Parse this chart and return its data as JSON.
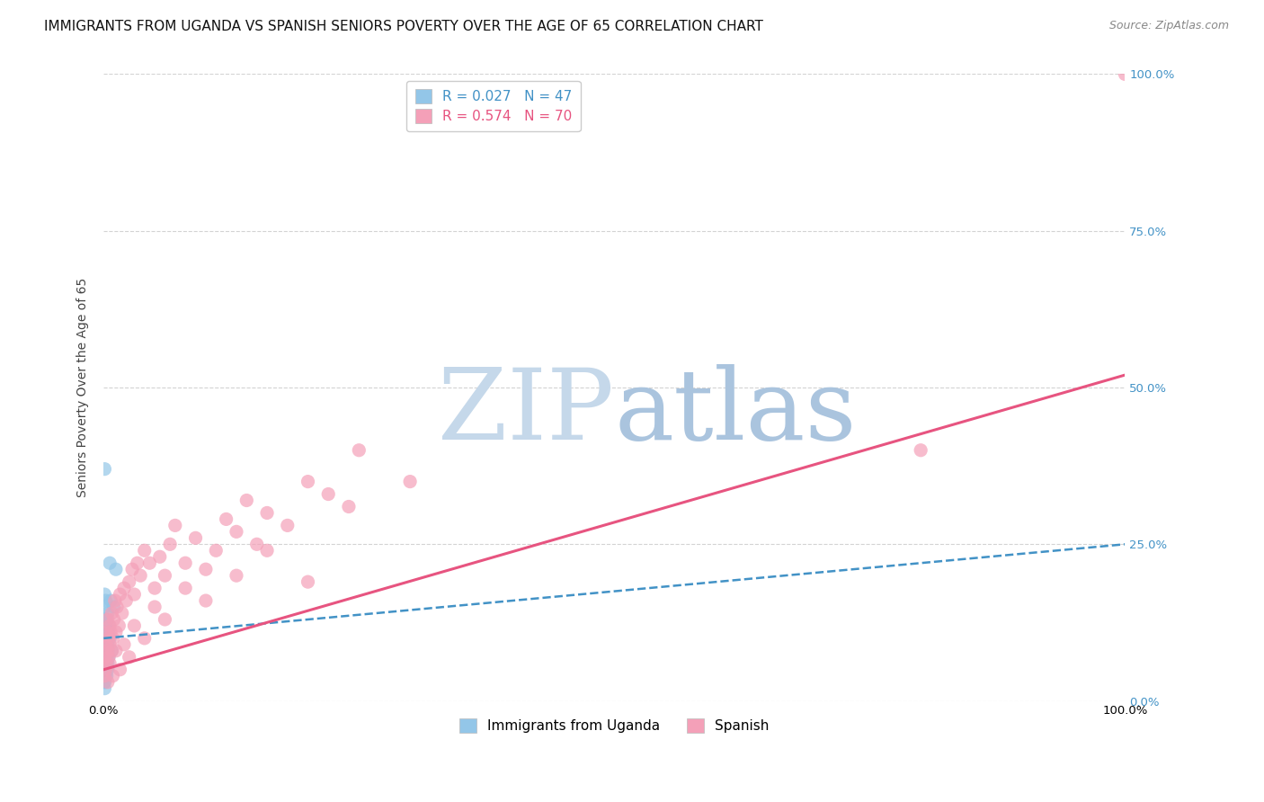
{
  "title": "IMMIGRANTS FROM UGANDA VS SPANISH SENIORS POVERTY OVER THE AGE OF 65 CORRELATION CHART",
  "source": "Source: ZipAtlas.com",
  "ylabel": "Seniors Poverty Over the Age of 65",
  "xlim": [
    0,
    1.0
  ],
  "ylim": [
    0,
    1.0
  ],
  "watermark_zip_color": "#c5d8ea",
  "watermark_atlas_color": "#aac4de",
  "background_color": "#ffffff",
  "grid_color": "#c8c8c8",
  "title_fontsize": 11,
  "source_fontsize": 9,
  "axis_label_fontsize": 10,
  "tick_fontsize": 9.5,
  "legend_fontsize": 11,
  "R_uganda": 0.027,
  "N_uganda": 47,
  "R_spanish": 0.574,
  "N_spanish": 70,
  "uganda_color": "#93c6e8",
  "uganda_trend_color": "#4292c6",
  "spanish_color": "#f4a0b8",
  "spanish_trend_color": "#e75480",
  "uganda_x": [
    0.001,
    0.001,
    0.001,
    0.001,
    0.001,
    0.001,
    0.001,
    0.001,
    0.001,
    0.001,
    0.002,
    0.002,
    0.002,
    0.002,
    0.002,
    0.002,
    0.002,
    0.003,
    0.003,
    0.003,
    0.004,
    0.004,
    0.004,
    0.005,
    0.005,
    0.006,
    0.007,
    0.008,
    0.01,
    0.012,
    0.001,
    0.001,
    0.001,
    0.001,
    0.001,
    0.001,
    0.001,
    0.002,
    0.002,
    0.002,
    0.003,
    0.003,
    0.003,
    0.004,
    0.004,
    0.005,
    0.006
  ],
  "uganda_y": [
    0.37,
    0.02,
    0.03,
    0.03,
    0.04,
    0.04,
    0.05,
    0.06,
    0.07,
    0.08,
    0.04,
    0.05,
    0.06,
    0.07,
    0.09,
    0.1,
    0.12,
    0.04,
    0.06,
    0.08,
    0.05,
    0.08,
    0.14,
    0.07,
    0.11,
    0.22,
    0.16,
    0.08,
    0.15,
    0.21,
    0.08,
    0.09,
    0.1,
    0.11,
    0.13,
    0.15,
    0.17,
    0.06,
    0.1,
    0.16,
    0.05,
    0.07,
    0.13,
    0.06,
    0.09,
    0.12,
    0.1
  ],
  "spanish_x": [
    0.001,
    0.001,
    0.002,
    0.002,
    0.003,
    0.003,
    0.004,
    0.004,
    0.005,
    0.005,
    0.006,
    0.006,
    0.007,
    0.008,
    0.008,
    0.009,
    0.01,
    0.011,
    0.012,
    0.013,
    0.015,
    0.016,
    0.018,
    0.02,
    0.022,
    0.025,
    0.028,
    0.03,
    0.033,
    0.036,
    0.04,
    0.045,
    0.05,
    0.055,
    0.06,
    0.065,
    0.07,
    0.08,
    0.09,
    0.1,
    0.11,
    0.12,
    0.13,
    0.14,
    0.15,
    0.16,
    0.18,
    0.2,
    0.22,
    0.24,
    0.004,
    0.006,
    0.009,
    0.012,
    0.016,
    0.02,
    0.025,
    0.03,
    0.04,
    0.05,
    0.06,
    0.08,
    0.1,
    0.13,
    0.16,
    0.2,
    0.25,
    0.3,
    0.8,
    1.0
  ],
  "spanish_y": [
    0.04,
    0.07,
    0.05,
    0.09,
    0.06,
    0.11,
    0.08,
    0.13,
    0.07,
    0.1,
    0.09,
    0.12,
    0.11,
    0.08,
    0.14,
    0.1,
    0.13,
    0.16,
    0.11,
    0.15,
    0.12,
    0.17,
    0.14,
    0.18,
    0.16,
    0.19,
    0.21,
    0.17,
    0.22,
    0.2,
    0.24,
    0.22,
    0.18,
    0.23,
    0.2,
    0.25,
    0.28,
    0.22,
    0.26,
    0.21,
    0.24,
    0.29,
    0.27,
    0.32,
    0.25,
    0.3,
    0.28,
    0.35,
    0.33,
    0.31,
    0.03,
    0.06,
    0.04,
    0.08,
    0.05,
    0.09,
    0.07,
    0.12,
    0.1,
    0.15,
    0.13,
    0.18,
    0.16,
    0.2,
    0.24,
    0.19,
    0.4,
    0.35,
    0.4,
    1.0
  ],
  "trend_uganda": {
    "intercept": 0.1,
    "slope": 0.15
  },
  "trend_spanish": {
    "intercept": 0.05,
    "slope": 0.47
  }
}
